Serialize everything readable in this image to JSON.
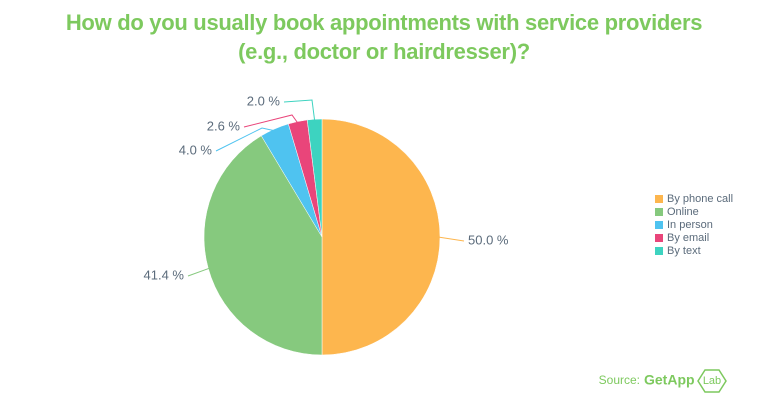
{
  "chart_data": {
    "type": "pie",
    "title": "How do you usually book appointments with service providers (e.g., doctor or hairdresser)?",
    "categories": [
      "By phone call",
      "Online",
      "In person",
      "By email",
      "By text"
    ],
    "values": [
      50,
      41.4,
      4,
      2.6,
      2
    ],
    "value_labels": [
      "50.0 %",
      "41.4 %",
      "4.0 %",
      "2.6 %",
      "2.0 %"
    ],
    "colors": [
      "#fdb64e",
      "#86c97e",
      "#4fc3f0",
      "#e9457a",
      "#3dd3c0"
    ],
    "legend": "right",
    "source": "Source:",
    "source_brand": "GetApp",
    "source_lab": "Lab"
  }
}
